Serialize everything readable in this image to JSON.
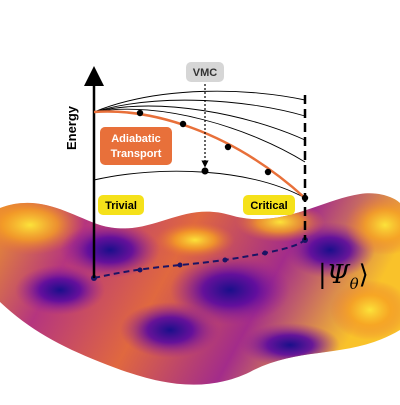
{
  "axis_label": "Energy",
  "vmc_label": "VMC",
  "transport_label": [
    "Adiabatic",
    "Transport"
  ],
  "trivial_label": "Trivial",
  "critical_label": "Critical",
  "state_label": {
    "left": "|",
    "symbol": "Ψ",
    "subscript": "θ",
    "right": "⟩"
  }
}
